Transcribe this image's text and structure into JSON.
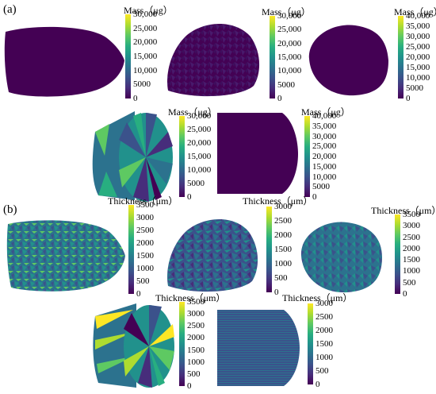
{
  "panels": {
    "a": "(a)",
    "b": "(b)"
  },
  "units": {
    "mass": "Mass（μg）",
    "thickness": "Thickness（μm）"
  },
  "colors": {
    "viridis": [
      "#440154",
      "#472d7b",
      "#3b528b",
      "#2c728e",
      "#21918c",
      "#28ae80",
      "#5ec962",
      "#addc30",
      "#fde725"
    ],
    "background": "#ffffff"
  },
  "colorbars": [
    {
      "title_key": "mass",
      "ticks": [
        "30,000",
        "25,000",
        "20,000",
        "15,000",
        "10,000",
        "5000",
        "0"
      ]
    },
    {
      "title_key": "mass",
      "ticks": [
        "30,000",
        "25,000",
        "20,000",
        "15,000",
        "10,000",
        "5000",
        "0"
      ]
    },
    {
      "title_key": "mass",
      "ticks": [
        "40,000",
        "35,000",
        "30,000",
        "25,000",
        "20,000",
        "15,000",
        "10,000",
        "5000",
        "0"
      ]
    },
    {
      "title_key": "mass",
      "ticks": [
        "30,000",
        "25,000",
        "20,000",
        "15,000",
        "10,000",
        "5000",
        "0"
      ]
    },
    {
      "title_key": "mass",
      "ticks": [
        "40,000",
        "35,000",
        "30,000",
        "25,000",
        "20,000",
        "15,000",
        "10,000",
        "5000",
        "0"
      ]
    },
    {
      "title_key": "thickness",
      "ticks": [
        "3500",
        "3000",
        "2500",
        "2000",
        "1500",
        "1000",
        "500",
        "0"
      ]
    },
    {
      "title_key": "thickness",
      "ticks": [
        "3000",
        "2500",
        "2000",
        "1500",
        "1000",
        "500",
        "0"
      ]
    },
    {
      "title_key": "thickness",
      "ticks": [
        "3500",
        "3000",
        "2500",
        "2000",
        "1500",
        "1000",
        "500",
        "0"
      ]
    },
    {
      "title_key": "thickness",
      "ticks": [
        "3500",
        "3000",
        "2500",
        "2000",
        "1500",
        "1000",
        "500",
        "0"
      ]
    },
    {
      "title_key": "thickness",
      "ticks": [
        "3000",
        "2500",
        "2000",
        "1500",
        "1000",
        "500",
        "0"
      ]
    }
  ]
}
